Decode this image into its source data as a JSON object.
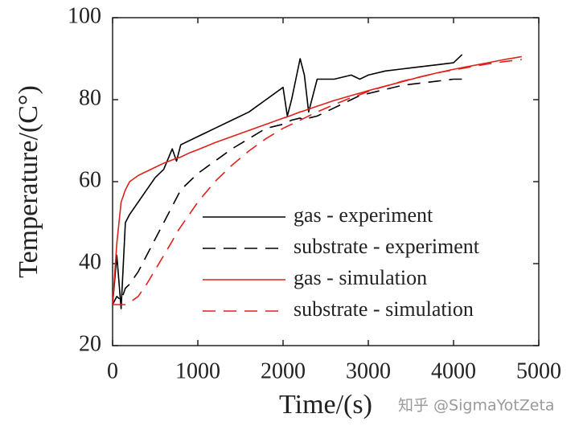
{
  "chart_data": {
    "type": "line",
    "xlabel": "Time/(s)",
    "ylabel": "Temperature/(C°)",
    "watermark": "知乎 @SigmaYotZeta",
    "xlim": [
      0,
      5000
    ],
    "ylim": [
      20,
      100
    ],
    "xticks": [
      0,
      1000,
      2000,
      3000,
      4000,
      5000
    ],
    "yticks": [
      20,
      40,
      60,
      80,
      100
    ],
    "legend_position": "right",
    "x": [
      0,
      50,
      100,
      150,
      200,
      300,
      400,
      500,
      600,
      700,
      750,
      800,
      900,
      1000,
      1200,
      1400,
      1600,
      1800,
      2000,
      2050,
      2100,
      2200,
      2250,
      2300,
      2400,
      2600,
      2800,
      2900,
      3000,
      3200,
      3400,
      3600,
      3800,
      4000,
      4100,
      4200,
      4400,
      4600,
      4800
    ],
    "series": [
      {
        "name": "gas - experiment",
        "color": "#000000",
        "dashed": false,
        "values": [
          30,
          42,
          29,
          50,
          52,
          55,
          58,
          61,
          63,
          68,
          65,
          69,
          70,
          71,
          73,
          75,
          77,
          80,
          83,
          76,
          80,
          90,
          86,
          77,
          85,
          85,
          86,
          85,
          86,
          87,
          87.5,
          88,
          88.5,
          89,
          91,
          null,
          null,
          null,
          null
        ]
      },
      {
        "name": "substrate - experiment",
        "color": "#000000",
        "dashed": true,
        "values": [
          30,
          32,
          31,
          34,
          35,
          38,
          42,
          46,
          50,
          54,
          56,
          58,
          60,
          62,
          65,
          68,
          70.5,
          73,
          74,
          74.5,
          75,
          75.5,
          75,
          75.5,
          76,
          78,
          80,
          81,
          81.5,
          82.5,
          83.5,
          84,
          84.5,
          85,
          85,
          null,
          null,
          null,
          null
        ]
      },
      {
        "name": "gas - simulation",
        "color": "#e0201b",
        "dashed": false,
        "values": [
          30,
          45,
          55,
          58,
          60,
          61.5,
          62.5,
          63.5,
          64.5,
          65.3,
          65.7,
          66,
          67,
          67.8,
          69.5,
          71,
          72.5,
          74,
          75.5,
          75.8,
          76.2,
          77,
          77.3,
          77.7,
          78.4,
          79.8,
          81,
          81.6,
          82.2,
          83.3,
          84.4,
          85.5,
          86.5,
          87.4,
          87.8,
          88.2,
          89,
          89.8,
          90.5
        ]
      },
      {
        "name": "substrate - simulation",
        "color": "#e0201b",
        "dashed": true,
        "values": [
          30,
          30,
          30,
          30,
          30.5,
          32,
          35,
          38.5,
          42,
          45.5,
          47.5,
          49,
          52,
          55,
          60,
          64,
          67.5,
          70.5,
          73,
          73.5,
          74,
          75,
          75.5,
          76,
          77,
          78.8,
          80.5,
          81.2,
          82,
          83.3,
          84.5,
          85.5,
          86.5,
          87.3,
          87.6,
          88,
          88.7,
          89.3,
          89.8
        ]
      }
    ]
  }
}
